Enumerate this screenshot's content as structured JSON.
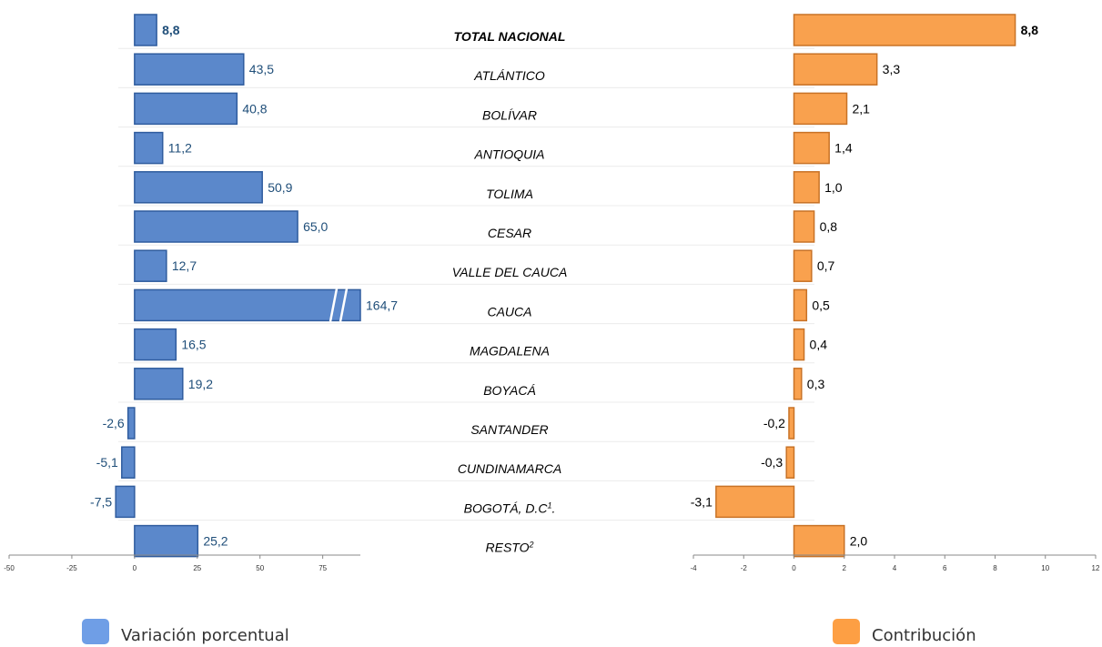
{
  "colors": {
    "variation_fill": "#5b88cb",
    "variation_stroke": "#2f5c9e",
    "variation_label": "#1f4e79",
    "contribution_fill": "#f9a14e",
    "contribution_stroke": "#c87226",
    "legend_variation": "#6f9ee6",
    "legend_contribution": "#fd9f44",
    "axis": "#888888"
  },
  "legend": {
    "variation": "Variación porcentual",
    "contribution": "Contribución"
  },
  "chart_data": {
    "type": "bar",
    "orientation": "horizontal",
    "title": "",
    "categories": [
      {
        "base": "TOTAL NACIONAL",
        "sup": "",
        "suffix": "",
        "bold": true
      },
      {
        "base": "ATLÁNTICO",
        "sup": "",
        "suffix": "",
        "bold": false
      },
      {
        "base": "BOLÍVAR",
        "sup": "",
        "suffix": "",
        "bold": false
      },
      {
        "base": "ANTIOQUIA",
        "sup": "",
        "suffix": "",
        "bold": false
      },
      {
        "base": "TOLIMA",
        "sup": "",
        "suffix": "",
        "bold": false
      },
      {
        "base": "CESAR",
        "sup": "",
        "suffix": "",
        "bold": false
      },
      {
        "base": "VALLE DEL CAUCA",
        "sup": "",
        "suffix": "",
        "bold": false
      },
      {
        "base": "CAUCA",
        "sup": "",
        "suffix": "",
        "bold": false
      },
      {
        "base": "MAGDALENA",
        "sup": "",
        "suffix": "",
        "bold": false
      },
      {
        "base": "BOYACÁ",
        "sup": "",
        "suffix": "",
        "bold": false
      },
      {
        "base": "SANTANDER",
        "sup": "",
        "suffix": "",
        "bold": false
      },
      {
        "base": "CUNDINAMARCA",
        "sup": "",
        "suffix": "",
        "bold": false
      },
      {
        "base": "BOGOTÁ, D.C",
        "sup": "1",
        "suffix": ".",
        "bold": false
      },
      {
        "base": "RESTO",
        "sup": "2",
        "suffix": "",
        "bold": false
      }
    ],
    "panels": [
      {
        "series_name": "Variación porcentual",
        "values": [
          8.8,
          43.5,
          40.8,
          11.2,
          50.9,
          65.0,
          12.7,
          164.7,
          16.5,
          19.2,
          -2.6,
          -5.1,
          -7.5,
          25.2
        ],
        "value_labels": [
          "8,8",
          "43,5",
          "40,8",
          "11,2",
          "50,9",
          "65,0",
          "12,7",
          "164,7",
          "16,5",
          "19,2",
          "-2,6",
          "-5,1",
          "-7,5",
          "25,2"
        ],
        "xlim": [
          -50,
          90
        ],
        "ticks": [
          -50,
          -25,
          0,
          25,
          50,
          75
        ],
        "tick_labels": [
          "-50",
          "-25",
          "0",
          "25",
          "50",
          "75"
        ],
        "axis_break_on": "CAUCA"
      },
      {
        "series_name": "Contribución",
        "values": [
          8.8,
          3.3,
          2.1,
          1.4,
          1.0,
          0.8,
          0.7,
          0.5,
          0.4,
          0.3,
          -0.2,
          -0.3,
          -3.1,
          2.0
        ],
        "value_labels": [
          "8,8",
          "3,3",
          "2,1",
          "1,4",
          "1,0",
          "0,8",
          "0,7",
          "0,5",
          "0,4",
          "0,3",
          "-0,2",
          "-0,3",
          "-3,1",
          "2,0"
        ],
        "xlim": [
          -4,
          12
        ],
        "ticks": [
          -4,
          -2,
          0,
          2,
          4,
          6,
          8,
          10,
          12
        ],
        "tick_labels": [
          "-4",
          "-2",
          "0",
          "2",
          "4",
          "6",
          "8",
          "10",
          "12"
        ]
      }
    ],
    "grid": false,
    "legend_position": "bottom"
  }
}
